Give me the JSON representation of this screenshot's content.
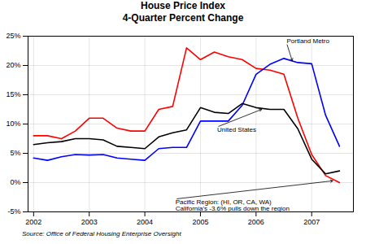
{
  "chart_data": {
    "type": "line",
    "title": "House Price Index",
    "subtitle": "4-Quarter Percent Change",
    "caption": "Source: Office of Federal Housing Enterprise Oversight",
    "x": [
      2002.0,
      2002.25,
      2002.5,
      2002.75,
      2003.0,
      2003.25,
      2003.5,
      2003.75,
      2004.0,
      2004.25,
      2004.5,
      2004.75,
      2005.0,
      2005.25,
      2005.5,
      2005.75,
      2006.0,
      2006.25,
      2006.5,
      2006.75,
      2007.0,
      2007.25,
      2007.5
    ],
    "series": [
      {
        "color": "red",
        "values": [
          8.0,
          8.0,
          7.5,
          8.8,
          11.0,
          11.0,
          9.3,
          8.8,
          8.8,
          12.5,
          13.0,
          23.0,
          21.0,
          22.3,
          21.5,
          21.0,
          19.5,
          19.2,
          18.5,
          11.0,
          4.8,
          1.2,
          0.0
        ]
      },
      {
        "color": "blue",
        "values": [
          4.2,
          3.8,
          4.4,
          4.8,
          4.7,
          4.8,
          4.2,
          4.0,
          3.8,
          5.8,
          6.0,
          6.0,
          10.5,
          10.5,
          10.5,
          13.2,
          18.5,
          20.2,
          21.2,
          20.5,
          20.3,
          11.5,
          6.2
        ]
      },
      {
        "color": "black",
        "values": [
          6.5,
          6.8,
          7.0,
          7.5,
          7.5,
          7.3,
          6.2,
          6.0,
          5.8,
          7.8,
          8.5,
          9.0,
          12.8,
          12.0,
          11.8,
          13.5,
          12.8,
          12.5,
          12.5,
          9.2,
          4.0,
          1.5,
          2.0
        ]
      }
    ],
    "xlim": [
      2001.9,
      2007.75
    ],
    "ylim": [
      -5,
      25
    ],
    "xticks": [
      2002,
      2003,
      2004,
      2005,
      2006,
      2007
    ],
    "yticks": [
      {
        "value": -5,
        "label": "-5%"
      },
      {
        "value": 0,
        "label": "0%"
      },
      {
        "value": 5,
        "label": "5%"
      },
      {
        "value": 10,
        "label": "10%"
      },
      {
        "value": 15,
        "label": "15%"
      },
      {
        "value": 20,
        "label": "20%"
      },
      {
        "value": 25,
        "label": "25%"
      }
    ],
    "grid": true,
    "annotations": [
      {
        "text": "Portland Metro",
        "xy": [
          2006.65,
          20.8
        ],
        "xytext": [
          2006.55,
          23.8
        ]
      },
      {
        "text": "United States",
        "xy": [
          2006.1,
          12.5
        ],
        "xytext": [
          2005.3,
          9.5
        ]
      },
      {
        "text": "Pacific Region: (HI, OR, CA, WA)\nCalifornia's -3.6% pulls down the region",
        "xy": [
          2007.38,
          0.3
        ],
        "xytext": [
          2004.55,
          -2.8
        ]
      }
    ]
  }
}
